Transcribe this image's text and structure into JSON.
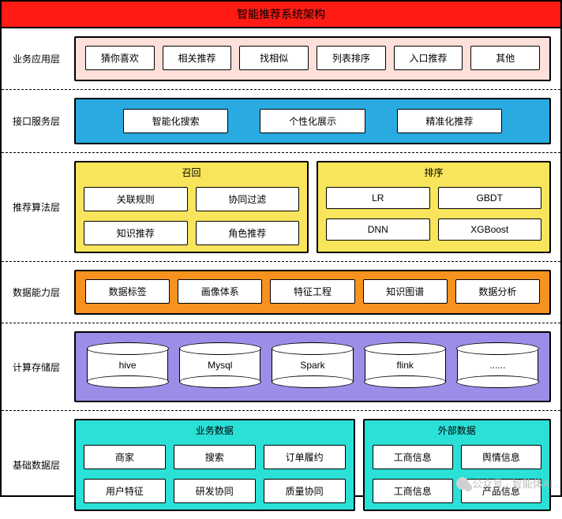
{
  "title": "智能推荐系统架构",
  "colors": {
    "title_bg": "#fd1b14",
    "layer1_panel": "#fde0d9",
    "layer2_panel": "#29abe2",
    "layer3_panel": "#f9e55b",
    "layer4_panel": "#f7921e",
    "layer5_panel": "#9b8ee8",
    "layer6_panel": "#2ae0d7",
    "chip_bg": "#ffffff",
    "border": "#000000"
  },
  "layers": [
    {
      "label": "业务应用层",
      "panel_color_key": "layer1_panel",
      "style": "single_row",
      "items": [
        "猜你喜欢",
        "相关推荐",
        "找相似",
        "列表排序",
        "入口推荐",
        "其他"
      ]
    },
    {
      "label": "接口服务层",
      "panel_color_key": "layer2_panel",
      "style": "service_row",
      "items": [
        "智能化搜索",
        "个性化展示",
        "精准化推荐"
      ]
    },
    {
      "label": "推荐算法层",
      "panel_color_key": "layer3_panel",
      "style": "dual_group",
      "groups": [
        {
          "title": "召回",
          "rows": [
            [
              "关联规则",
              "协同过滤"
            ],
            [
              "知识推荐",
              "角色推荐"
            ]
          ]
        },
        {
          "title": "排序",
          "rows": [
            [
              "LR",
              "GBDT"
            ],
            [
              "DNN",
              "XGBoost"
            ]
          ]
        }
      ]
    },
    {
      "label": "数据能力层",
      "panel_color_key": "layer4_panel",
      "style": "single_row",
      "items": [
        "数据标签",
        "画像体系",
        "特征工程",
        "知识图谱",
        "数据分析"
      ]
    },
    {
      "label": "计算存储层",
      "panel_color_key": "layer5_panel",
      "style": "cylinders",
      "items": [
        "hive",
        "Mysql",
        "Spark",
        "flink",
        "......"
      ]
    },
    {
      "label": "基础数据层",
      "panel_color_key": "layer6_panel",
      "style": "dual_group_uneven",
      "groups": [
        {
          "title": "业务数据",
          "flex": 3,
          "rows": [
            [
              "商家",
              "搜索",
              "订单履约"
            ],
            [
              "用户特征",
              "研发协同",
              "质量协同"
            ]
          ]
        },
        {
          "title": "外部数据",
          "flex": 2,
          "rows": [
            [
              "工商信息",
              "舆情信息"
            ],
            [
              "工商信息",
              "产品信息"
            ]
          ]
        }
      ]
    }
  ],
  "watermark": "公众号 · 智能体AI",
  "typography": {
    "title_fs": 14,
    "label_fs": 12,
    "chip_fs": 12
  }
}
